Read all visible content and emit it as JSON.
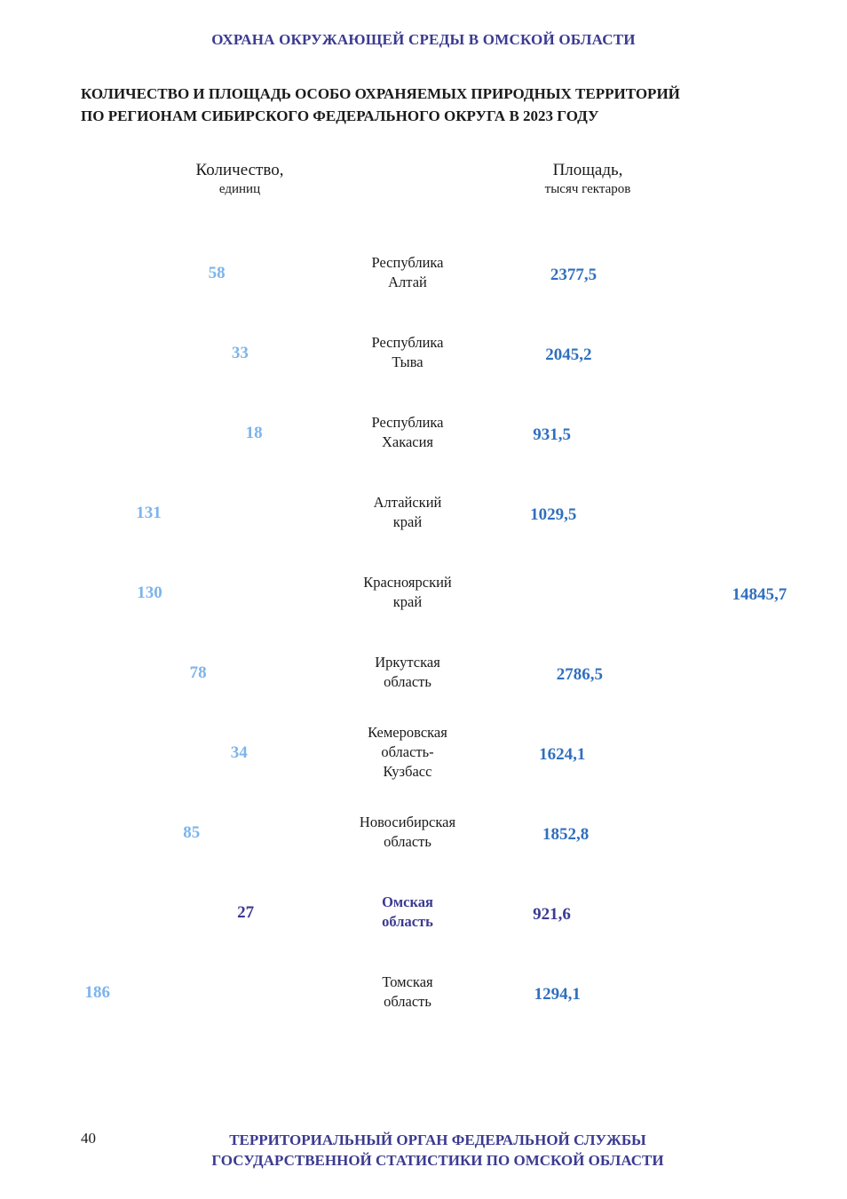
{
  "header": {
    "title": "ОХРАНА ОКРУЖАЮЩЕЙ СРЕДЫ В ОМСКОЙ ОБЛАСТИ"
  },
  "chart_title_lines": [
    "КОЛИЧЕСТВО И ПЛОЩАДЬ ОСОБО ОХРАНЯЕМЫХ ПРИРОДНЫХ ТЕРРИТОРИЙ",
    "ПО РЕГИОНАМ СИБИРСКОГО ФЕДЕРАЛЬНОГО ОКРУГА В 2023 ГОДУ"
  ],
  "columns": {
    "count": {
      "label": "Количество,",
      "unit": "единиц"
    },
    "area": {
      "label": "Площадь,",
      "unit": "тысяч гектаров"
    }
  },
  "chart_data": {
    "type": "bar",
    "title": "КОЛИЧЕСТВО И ПЛОЩАДЬ ОСОБО ОХРАНЯЕМЫХ ПРИРОДНЫХ ТЕРРИТОРИЙ ПО РЕГИОНАМ СИБИРСКОГО ФЕДЕРАЛЬНОГО ОКРУГА В 2023 ГОДУ",
    "orientation": "horizontal-butterfly",
    "categories": [
      [
        "Республика",
        "Алтай"
      ],
      [
        "Республика",
        "Тыва"
      ],
      [
        "Республика",
        "Хакасия"
      ],
      [
        "Алтайский",
        "край"
      ],
      [
        "Красноярский",
        "край"
      ],
      [
        "Иркутская",
        "область"
      ],
      [
        "Кемеровская",
        "область-",
        "Кузбасс"
      ],
      [
        "Новосибирская",
        "область"
      ],
      [
        "Омская",
        "область"
      ],
      [
        "Томская",
        "область"
      ]
    ],
    "highlight_index": 8,
    "series": [
      {
        "name": "Количество, единиц",
        "values": [
          58,
          33,
          18,
          131,
          130,
          78,
          34,
          85,
          27,
          186
        ],
        "labels": [
          "58",
          "33",
          "18",
          "131",
          "130",
          "78",
          "34",
          "85",
          "27",
          "186"
        ],
        "color": "#7cb4ec",
        "direction": "left"
      },
      {
        "name": "Площадь, тысяч гектаров",
        "values": [
          2377.5,
          2045.2,
          931.5,
          1029.5,
          14845.7,
          2786.5,
          1624.1,
          1852.8,
          921.6,
          1294.1
        ],
        "labels": [
          "2377,5",
          "2045,2",
          "931,5",
          "1029,5",
          "14845,7",
          "2786,5",
          "1624,1",
          "1852,8",
          "921,6",
          "1294,1"
        ],
        "color": "#2f6fbe",
        "direction": "right"
      }
    ],
    "highlight_color": "#3b3a91",
    "grid": false,
    "legend": "none"
  },
  "footer": {
    "page_number": "40",
    "lines": [
      "ТЕРРИТОРИАЛЬНЫЙ ОРГАН ФЕДЕРАЛЬНОЙ СЛУЖБЫ",
      "ГОСУДАРСТВЕННОЙ СТАТИСТИКИ ПО ОМСКОЙ ОБЛАСТИ"
    ]
  }
}
